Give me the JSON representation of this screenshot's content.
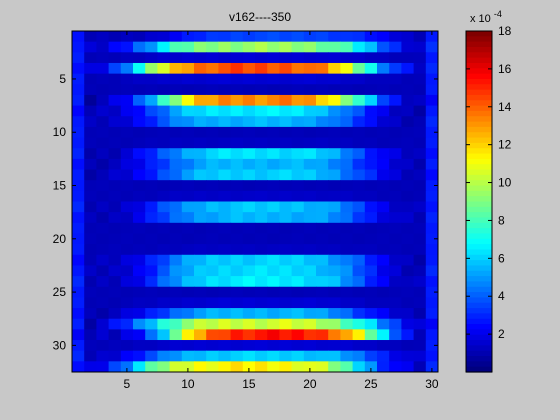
{
  "chart_data": {
    "type": "heatmap",
    "title": "v162----350",
    "xlabel": "",
    "ylabel": "",
    "colormap": "jet",
    "x_ticks": [
      5,
      10,
      15,
      20,
      25,
      30
    ],
    "y_ticks": [
      5,
      10,
      15,
      20,
      25,
      30
    ],
    "xlim": [
      0.5,
      30.5
    ],
    "ylim": [
      0.5,
      32.5
    ],
    "y_reversed": true,
    "grid": false,
    "colorbar": {
      "ticks": [
        2,
        4,
        6,
        8,
        10,
        12,
        14,
        16,
        18
      ],
      "multiplier_label": "x 10",
      "exponent": "-4",
      "range": [
        0,
        18
      ]
    },
    "grid_size": {
      "cols": 30,
      "rows": 32
    },
    "row_peaks": [
      3.5,
      9.5,
      1.5,
      14.5,
      1.5,
      1.0,
      13.5,
      6.5,
      5.5,
      1.0,
      1.2,
      6.3,
      5.5,
      6.0,
      1.0,
      1.3,
      5.8,
      5.5,
      1.0,
      1.0,
      1.2,
      6.0,
      6.2,
      6.5,
      1.0,
      1.5,
      5.5,
      10.5,
      15.5,
      1.5,
      6.0,
      11.5
    ],
    "row_centers": [
      17.5,
      16,
      16,
      15.5,
      15.5,
      15.5,
      16,
      15.5,
      15.5,
      16,
      16,
      16,
      16,
      16,
      16,
      16,
      16,
      16,
      16,
      16,
      16,
      16,
      16,
      16,
      16,
      16,
      16,
      16,
      17,
      16,
      16,
      15
    ],
    "row_widths": [
      9,
      10,
      10,
      10,
      10,
      10,
      9,
      9,
      9,
      9,
      9,
      9,
      9,
      9,
      9,
      9,
      9,
      9,
      9,
      9,
      9,
      9,
      9,
      9,
      9,
      9,
      9,
      10,
      9,
      10,
      10,
      10
    ],
    "background_value": 1.0,
    "edge_value": 4.5
  }
}
